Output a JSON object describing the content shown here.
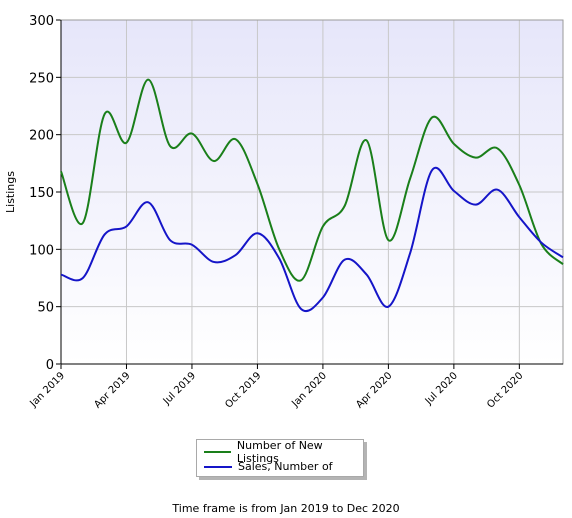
{
  "chart_data": {
    "type": "line",
    "ylabel": "Listings",
    "ylim": [
      0,
      300
    ],
    "yticks": [
      0,
      50,
      100,
      150,
      200,
      250,
      300
    ],
    "x_months": [
      "Jan 2019",
      "Feb 2019",
      "Mar 2019",
      "Apr 2019",
      "May 2019",
      "Jun 2019",
      "Jul 2019",
      "Aug 2019",
      "Sep 2019",
      "Oct 2019",
      "Nov 2019",
      "Dec 2019",
      "Jan 2020",
      "Feb 2020",
      "Mar 2020",
      "Apr 2020",
      "May 2020",
      "Jun 2020",
      "Jul 2020",
      "Aug 2020",
      "Sep 2020",
      "Oct 2020",
      "Nov 2020",
      "Dec 2020"
    ],
    "xtick_labels": [
      "Jan 2019",
      "Apr 2019",
      "Jul 2019",
      "Oct 2019",
      "Jan 2020",
      "Apr 2020",
      "Jul 2020",
      "Oct 2020"
    ],
    "series": [
      {
        "name": "Number of New Listings",
        "color": "#1a7f1a",
        "values": [
          168,
          123,
          218,
          193,
          248,
          190,
          201,
          177,
          196,
          157,
          100,
          73,
          120,
          138,
          195,
          108,
          162,
          215,
          192,
          180,
          188,
          156,
          105,
          87
        ]
      },
      {
        "name": "Sales, Number of",
        "color": "#1515c8",
        "values": [
          78,
          75,
          113,
          120,
          141,
          108,
          104,
          89,
          95,
          114,
          92,
          48,
          58,
          91,
          78,
          50,
          97,
          169,
          151,
          139,
          152,
          128,
          106,
          93
        ]
      }
    ],
    "grid": true,
    "legend_position": "bottom-center"
  },
  "footnote": "Time frame is from Jan 2019 to Dec 2020"
}
